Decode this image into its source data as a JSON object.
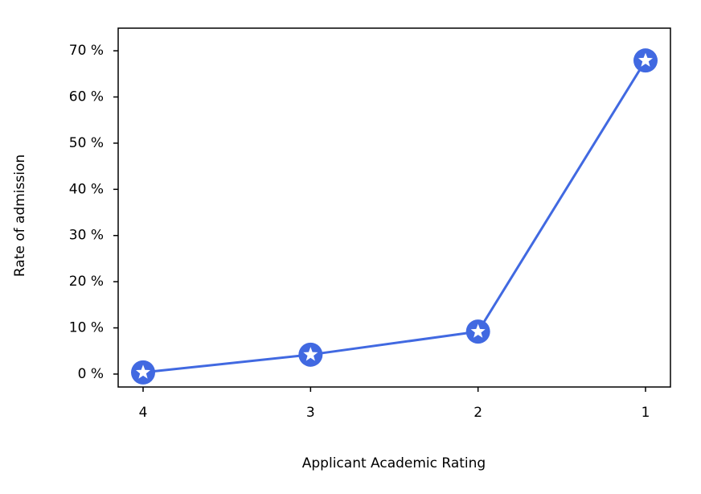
{
  "chart_data": {
    "type": "line",
    "x_label": "Applicant Academic Rating",
    "y_label": "Rate of admission",
    "categories": [
      "4",
      "3",
      "2",
      "1"
    ],
    "series": [
      {
        "name": "Rate of admission",
        "color": "#4169e1",
        "values": [
          0.35,
          4.2,
          9.2,
          67.9
        ]
      }
    ],
    "ylim": [
      -2.8,
      74.9
    ],
    "yticks": [
      {
        "value": 0,
        "label": "0 %"
      },
      {
        "value": 10,
        "label": "10 %"
      },
      {
        "value": 20,
        "label": "20 %"
      },
      {
        "value": 30,
        "label": "30 %"
      },
      {
        "value": 40,
        "label": "40 %"
      },
      {
        "value": 50,
        "label": "50 %"
      },
      {
        "value": 60,
        "label": "60 %"
      },
      {
        "value": 70,
        "label": "70 %"
      }
    ],
    "grid": false
  }
}
